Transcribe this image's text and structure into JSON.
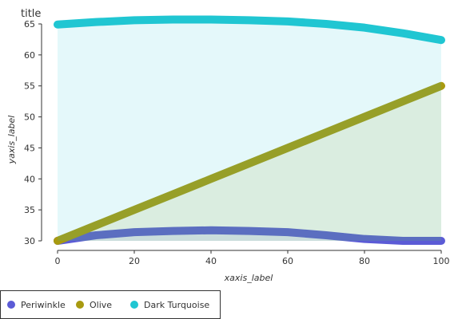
{
  "chart_data": {
    "type": "area",
    "title": "title",
    "xlabel": "xaxis_label",
    "ylabel": "yaxis_label",
    "xlim": [
      0,
      100
    ],
    "ylim": [
      30,
      65
    ],
    "xticks": [
      0,
      20,
      40,
      60,
      80,
      100
    ],
    "yticks": [
      30,
      35,
      40,
      45,
      50,
      55,
      60,
      65
    ],
    "grid": false,
    "legend": "bottom-left",
    "series": [
      {
        "name": "Periwinkle",
        "color": "#5b5bd6",
        "x": [
          0,
          10,
          20,
          30,
          40,
          50,
          60,
          70,
          80,
          90,
          100
        ],
        "y": [
          30.0,
          30.9,
          31.4,
          31.6,
          31.7,
          31.6,
          31.4,
          30.9,
          30.3,
          30.0,
          30.0
        ]
      },
      {
        "name": "Olive",
        "color": "#a89a10",
        "x": [
          0,
          10,
          20,
          30,
          40,
          50,
          60,
          70,
          80,
          90,
          100
        ],
        "y": [
          30.0,
          32.5,
          35.0,
          37.5,
          40.0,
          42.5,
          45.0,
          47.5,
          50.0,
          52.5,
          55.0
        ]
      },
      {
        "name": "Dark Turquoise",
        "color": "#20c6d2",
        "x": [
          0,
          10,
          20,
          30,
          40,
          50,
          60,
          70,
          80,
          90,
          100
        ],
        "y": [
          64.9,
          65.3,
          65.6,
          65.7,
          65.7,
          65.6,
          65.4,
          65.0,
          64.4,
          63.5,
          62.4
        ]
      }
    ]
  }
}
